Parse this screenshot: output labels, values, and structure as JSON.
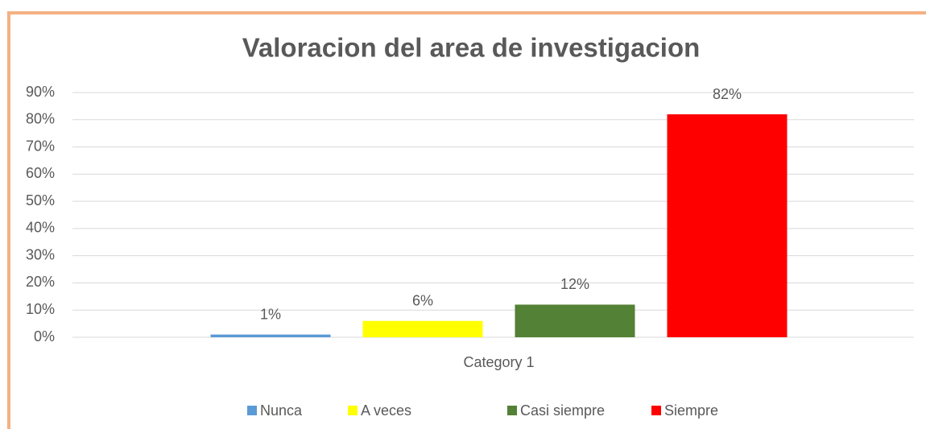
{
  "chart_data": {
    "type": "bar",
    "title": "Valoracion del area de investigacion",
    "categories": [
      "Category 1"
    ],
    "series": [
      {
        "name": "Nunca",
        "color": "#5b9bd5",
        "values": [
          1
        ],
        "value_labels": [
          "1%"
        ]
      },
      {
        "name": "A veces",
        "color": "#ffff00",
        "values": [
          6
        ],
        "value_labels": [
          "6%"
        ]
      },
      {
        "name": "Casi siempre",
        "color": "#538135",
        "values": [
          12
        ],
        "value_labels": [
          "12%"
        ]
      },
      {
        "name": "Siempre",
        "color": "#ff0000",
        "values": [
          82
        ],
        "value_labels": [
          "82%"
        ]
      }
    ],
    "ylim": [
      0,
      90
    ],
    "yticks": [
      {
        "value": 0,
        "label": "0%"
      },
      {
        "value": 10,
        "label": "10%"
      },
      {
        "value": 20,
        "label": "20%"
      },
      {
        "value": 30,
        "label": "30%"
      },
      {
        "value": 40,
        "label": "40%"
      },
      {
        "value": 50,
        "label": "50%"
      },
      {
        "value": 60,
        "label": "60%"
      },
      {
        "value": 70,
        "label": "70%"
      },
      {
        "value": 80,
        "label": "80%"
      },
      {
        "value": 90,
        "label": "90%"
      }
    ],
    "grid": true,
    "legend": "bottom"
  }
}
